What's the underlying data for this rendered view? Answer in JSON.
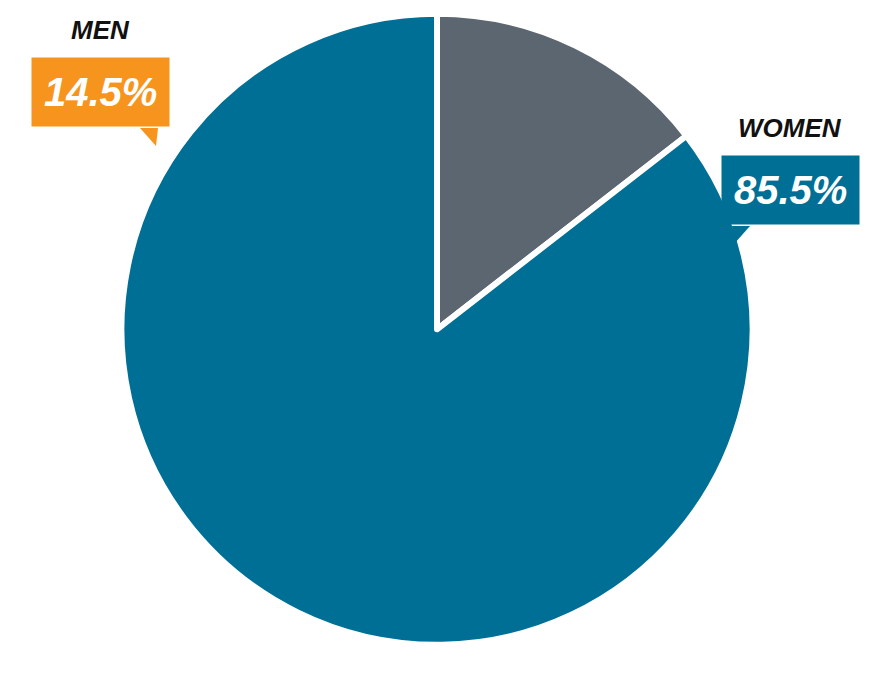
{
  "chart_data": {
    "type": "pie",
    "categories": [
      "MEN",
      "WOMEN"
    ],
    "values": [
      14.5,
      85.5
    ],
    "value_labels": [
      "14.5%",
      "85.5%"
    ],
    "colors": [
      "#5b6670",
      "#006f96"
    ],
    "data_labels": true,
    "legend": false
  }
}
